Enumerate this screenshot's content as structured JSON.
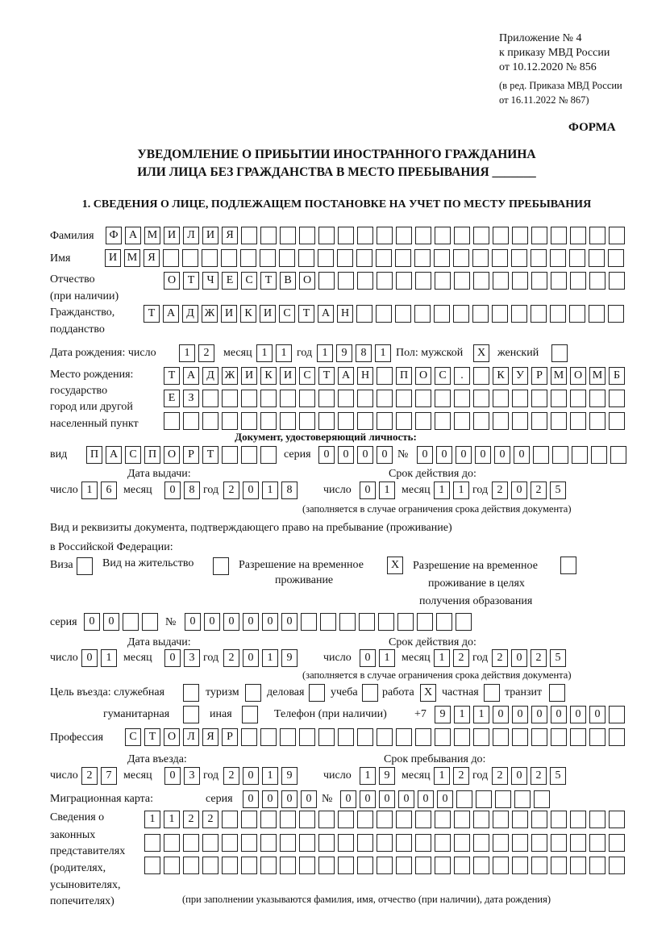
{
  "header": {
    "line1": "Приложение № 4",
    "line2": "к приказу МВД России",
    "line3": "от 10.12.2020 № 856",
    "line4": "(в ред. Приказа МВД России",
    "line5": "от 16.11.2022 № 867)",
    "form_label": "ФОРМА"
  },
  "title": {
    "line1": "УВЕДОМЛЕНИЕ О ПРИБЫТИИ ИНОСТРАННОГО ГРАЖДАНИНА",
    "line2": "ИЛИ ЛИЦА БЕЗ ГРАЖДАНСТВА В МЕСТО ПРЕБЫВАНИЯ _______"
  },
  "section1": {
    "heading": "1. СВЕДЕНИЯ О ЛИЦЕ, ПОДЛЕЖАЩЕМ ПОСТАНОВКЕ НА УЧЕТ ПО МЕСТУ ПРЕБЫВАНИЯ",
    "surname": {
      "label": "Фамилия",
      "value": "ФАМИЛИЯ"
    },
    "name": {
      "label": "Имя",
      "value": "ИМЯ"
    },
    "patronymic": {
      "label1": "Отчество",
      "label2": "(при наличии)",
      "value": "ОТЧЕСТВО"
    },
    "citizenship": {
      "label1": "Гражданство,",
      "label2": "подданство",
      "value": "ТАДЖИКИСТАН"
    },
    "birth_date": {
      "label": "Дата рождения:  число",
      "month_label": "месяц",
      "year_label": "год",
      "day": "12",
      "month": "11",
      "year": "1981"
    },
    "sex": {
      "label": "Пол: мужской",
      "female_label": "женский",
      "male": "X",
      "female": ""
    },
    "birth_place": {
      "label1": "Место рождения:",
      "label2": "государство",
      "label3": "город или другой",
      "label4": "населенный пункт",
      "line1": "ТАДЖИКИСТАН ПОС. КУРМОМБ",
      "line2": "ЕЗ",
      "line3": ""
    },
    "id_doc": {
      "heading": "Документ, удостоверяющий личность:",
      "kind_label": "вид",
      "kind": "ПАСПОРТ",
      "series_label": "серия",
      "series": "0000",
      "number_label": "№",
      "number": "000000",
      "issue_label": "Дата выдачи:",
      "valid_label": "Срок действия до:",
      "day_label": "число",
      "month_label": "месяц",
      "year_label": "год",
      "issue_day": "16",
      "issue_month": "08",
      "issue_year": "2018",
      "valid_day": "01",
      "valid_month": "11",
      "valid_year": "2025",
      "note": "(заполняется в случае ограничения срока действия документа)"
    },
    "stay_doc": {
      "label1": "Вид и реквизиты документа, подтверждающего право на пребывание (проживание)",
      "label2": "в Российской Федерации:",
      "visa_label": "Виза",
      "visa": "",
      "residence_label": "Вид на жительство",
      "residence": "",
      "trp_label1": "Разрешение на временное",
      "trp_label2": "проживание",
      "trp": "X",
      "trp_edu_label1": "Разрешение на временное",
      "trp_edu_label2": "проживание в целях",
      "trp_edu_label3": "получения образования",
      "trp_edu": "",
      "series_label": "серия",
      "series": "00",
      "number_label": "№",
      "number": "000000",
      "issue_label": "Дата выдачи:",
      "valid_label": "Срок действия до:",
      "day_label": "число",
      "month_label": "месяц",
      "year_label": "год",
      "issue_day": "01",
      "issue_month": "03",
      "issue_year": "2019",
      "valid_day": "01",
      "valid_month": "12",
      "valid_year": "2025",
      "note": "(заполняется в случае ограничения срока действия документа)"
    },
    "purpose": {
      "label": "Цель въезда: служебная",
      "official": "",
      "tourism_label": "туризм",
      "tourism": "",
      "business_label": "деловая",
      "business": "",
      "study_label": "учеба",
      "study": "",
      "work_label": "работа",
      "work": "X",
      "private_label": "частная",
      "private": "",
      "transit_label": "транзит",
      "transit": "",
      "humanitarian_label": "гуманитарная",
      "humanitarian": "",
      "other_label": "иная",
      "other": ""
    },
    "phone": {
      "label": "Телефон (при наличии)",
      "prefix": "+7",
      "value": "911000000"
    },
    "profession": {
      "label": "Профессия",
      "value": "СТОЛЯР"
    },
    "entry": {
      "entry_label": "Дата въезда:",
      "stay_until_label": "Срок пребывания до:",
      "day_label": "число",
      "month_label": "месяц",
      "year_label": "год",
      "entry_day": "27",
      "entry_month": "03",
      "entry_year": "2019",
      "until_day": "19",
      "until_month": "12",
      "until_year": "2025"
    },
    "migration_card": {
      "label": "Миграционная карта:",
      "series_label": "серия",
      "series": "0000",
      "number_label": "№",
      "number": "000000"
    },
    "representatives": {
      "label1": "Сведения о",
      "label2": "законных",
      "label3": "представителях",
      "label4": "(родителях,",
      "label5": "усыновителях,",
      "label6": "попечителях)",
      "line1": "1122",
      "line2": "",
      "line3": "",
      "note": "(при заполнении указываются фамилия, имя, отчество (при наличии), дата рождения)"
    }
  }
}
